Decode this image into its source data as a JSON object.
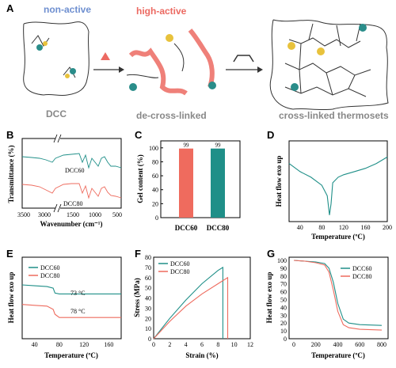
{
  "panelA": {
    "letter": "A",
    "labels": {
      "non_active": "non-active",
      "high_active": "high-active",
      "dcc": "DCC",
      "decross": "de-cross-linked",
      "thermoset": "cross-linked thermosets"
    }
  },
  "panelB": {
    "letter": "B",
    "ylabel": "Transmittance (%)",
    "xlabel": "Wavenumber (cm⁻¹)",
    "ticks": [
      "3500",
      "3000",
      "1500",
      "1000",
      "500"
    ],
    "series": [
      {
        "name": "DCC60",
        "color": "#1f8f88"
      },
      {
        "name": "DCC80",
        "color": "#ee6b5e"
      }
    ]
  },
  "panelC": {
    "letter": "C",
    "ylabel": "Gel content (%)",
    "yticks": [
      "0",
      "20",
      "40",
      "60",
      "80",
      "100"
    ]
  },
  "panelD": {
    "letter": "D",
    "ylabel": "Heat flow exo up",
    "xlabel": "Temperature (ºC)",
    "xticks": [
      "40",
      "80",
      "120",
      "160",
      "200"
    ]
  },
  "panelE": {
    "letter": "E",
    "ylabel": "Heat flow exo up",
    "xlabel": "Temperature (ºC)",
    "xticks": [
      "40",
      "80",
      "120",
      "160"
    ],
    "annotations": [
      "73 °C",
      "78 °C"
    ],
    "legend": [
      "DCC60",
      "DCC80"
    ]
  },
  "panelF": {
    "letter": "F",
    "ylabel": "Stress (MPa)",
    "xlabel": "Strain (%)",
    "xticks": [
      "0",
      "2",
      "4",
      "6",
      "8",
      "10",
      "12"
    ],
    "yticks": [
      "0",
      "10",
      "20",
      "30",
      "40",
      "50",
      "60",
      "70",
      "80"
    ],
    "legend": [
      "DCC60",
      "DCC80"
    ]
  },
  "panelG": {
    "letter": "G",
    "ylabel": "Heat flow exo up",
    "xlabel": "Temperature (ºC)",
    "xticks": [
      "0",
      "200",
      "400",
      "600",
      "800"
    ],
    "yticks": [
      "0",
      "10",
      "20",
      "30",
      "40",
      "50",
      "60",
      "70",
      "80",
      "90",
      "100"
    ],
    "legend": [
      "DCC60",
      "DCC80"
    ]
  },
  "chart_data": [
    {
      "type": "bar",
      "categories": [
        "DCC60",
        "DCC80"
      ],
      "values": [
        99,
        99
      ],
      "ylabel": "Gel content (%)",
      "ylim": [
        0,
        110
      ],
      "colors": [
        "#ef6b5e",
        "#1f8f88"
      ]
    },
    {
      "type": "line",
      "xlabel": "Temperature (ºC)",
      "ylabel": "Heat flow exo up",
      "xlim": [
        20,
        200
      ],
      "x": [
        20,
        40,
        60,
        80,
        90,
        94,
        97,
        100,
        110,
        120,
        140,
        160,
        180,
        200
      ],
      "series": [
        {
          "values": [
            0.72,
            0.62,
            0.55,
            0.45,
            0.32,
            0.08,
            0.22,
            0.48,
            0.55,
            0.58,
            0.62,
            0.66,
            0.72,
            0.8
          ]
        }
      ]
    },
    {
      "type": "line",
      "xlabel": "Temperature (ºC)",
      "ylabel": "Heat flow exo up",
      "xlim": [
        20,
        180
      ],
      "x": [
        20,
        40,
        60,
        70,
        73,
        80,
        100,
        120,
        140,
        160,
        180
      ],
      "series": [
        {
          "name": "DCC60",
          "values": [
            0.66,
            0.65,
            0.64,
            0.62,
            0.56,
            0.55,
            0.55,
            0.55,
            0.55,
            0.55,
            0.55
          ]
        },
        {
          "name": "DCC80",
          "values": [
            0.42,
            0.41,
            0.4,
            0.36,
            0.3,
            0.26,
            0.26,
            0.26,
            0.26,
            0.26,
            0.26
          ]
        }
      ]
    },
    {
      "type": "line",
      "xlabel": "Strain (%)",
      "ylabel": "Stress (MPa)",
      "xlim": [
        0,
        12
      ],
      "ylim": [
        0,
        80
      ],
      "series": [
        {
          "name": "DCC60",
          "x": [
            0,
            2,
            4,
            6,
            8,
            8.6,
            8.6
          ],
          "values": [
            0,
            20,
            38,
            54,
            67,
            70,
            0
          ]
        },
        {
          "name": "DCC80",
          "x": [
            0,
            2,
            4,
            6,
            8,
            9.2,
            9.2
          ],
          "values": [
            0,
            17,
            32,
            44,
            54,
            60,
            0
          ]
        }
      ]
    },
    {
      "type": "line",
      "xlabel": "Temperature (ºC)",
      "ylabel": "Heat flow exo up",
      "xlim": [
        0,
        800
      ],
      "ylim": [
        0,
        100
      ],
      "series": [
        {
          "name": "DCC60",
          "x": [
            0,
            100,
            200,
            280,
            320,
            360,
            400,
            450,
            500,
            600,
            800
          ],
          "values": [
            100,
            99,
            98,
            96,
            90,
            72,
            45,
            25,
            20,
            18,
            17
          ]
        },
        {
          "name": "DCC80",
          "x": [
            0,
            100,
            200,
            280,
            320,
            360,
            400,
            450,
            500,
            600,
            800
          ],
          "values": [
            100,
            99,
            97,
            94,
            85,
            62,
            35,
            18,
            14,
            12,
            11
          ]
        }
      ]
    }
  ]
}
